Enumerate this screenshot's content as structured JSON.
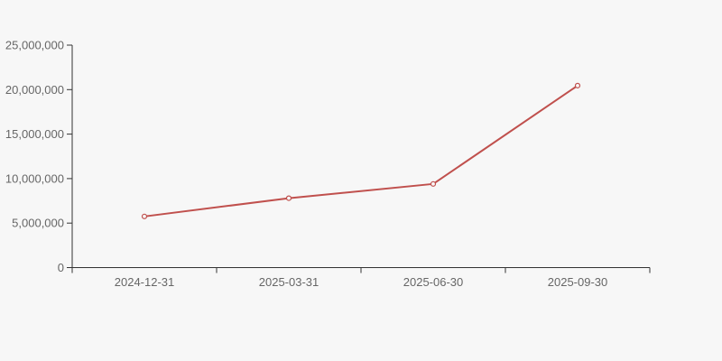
{
  "chart_data": {
    "type": "line",
    "x": [
      "2024-12-31",
      "2025-03-31",
      "2025-06-30",
      "2025-09-30"
    ],
    "series": [
      {
        "name": "series-1",
        "color": "#c0504d",
        "marker": "hollow-circle",
        "values": [
          5750000,
          7800000,
          9400000,
          20450000
        ]
      }
    ],
    "title": "",
    "xlabel": "",
    "ylabel": "",
    "ylim": [
      0,
      25000000
    ],
    "y_ticks": [
      0,
      5000000,
      10000000,
      15000000,
      20000000,
      25000000
    ],
    "y_tick_labels": [
      "0",
      "5,000,000",
      "10,000,000",
      "15,000,000",
      "20,000,000",
      "25,000,000"
    ],
    "grid": false,
    "legend_position": "none",
    "background_color": "#f7f7f7",
    "axis_color": "#333333",
    "tick_label_color": "#666666",
    "line_width": 2
  }
}
